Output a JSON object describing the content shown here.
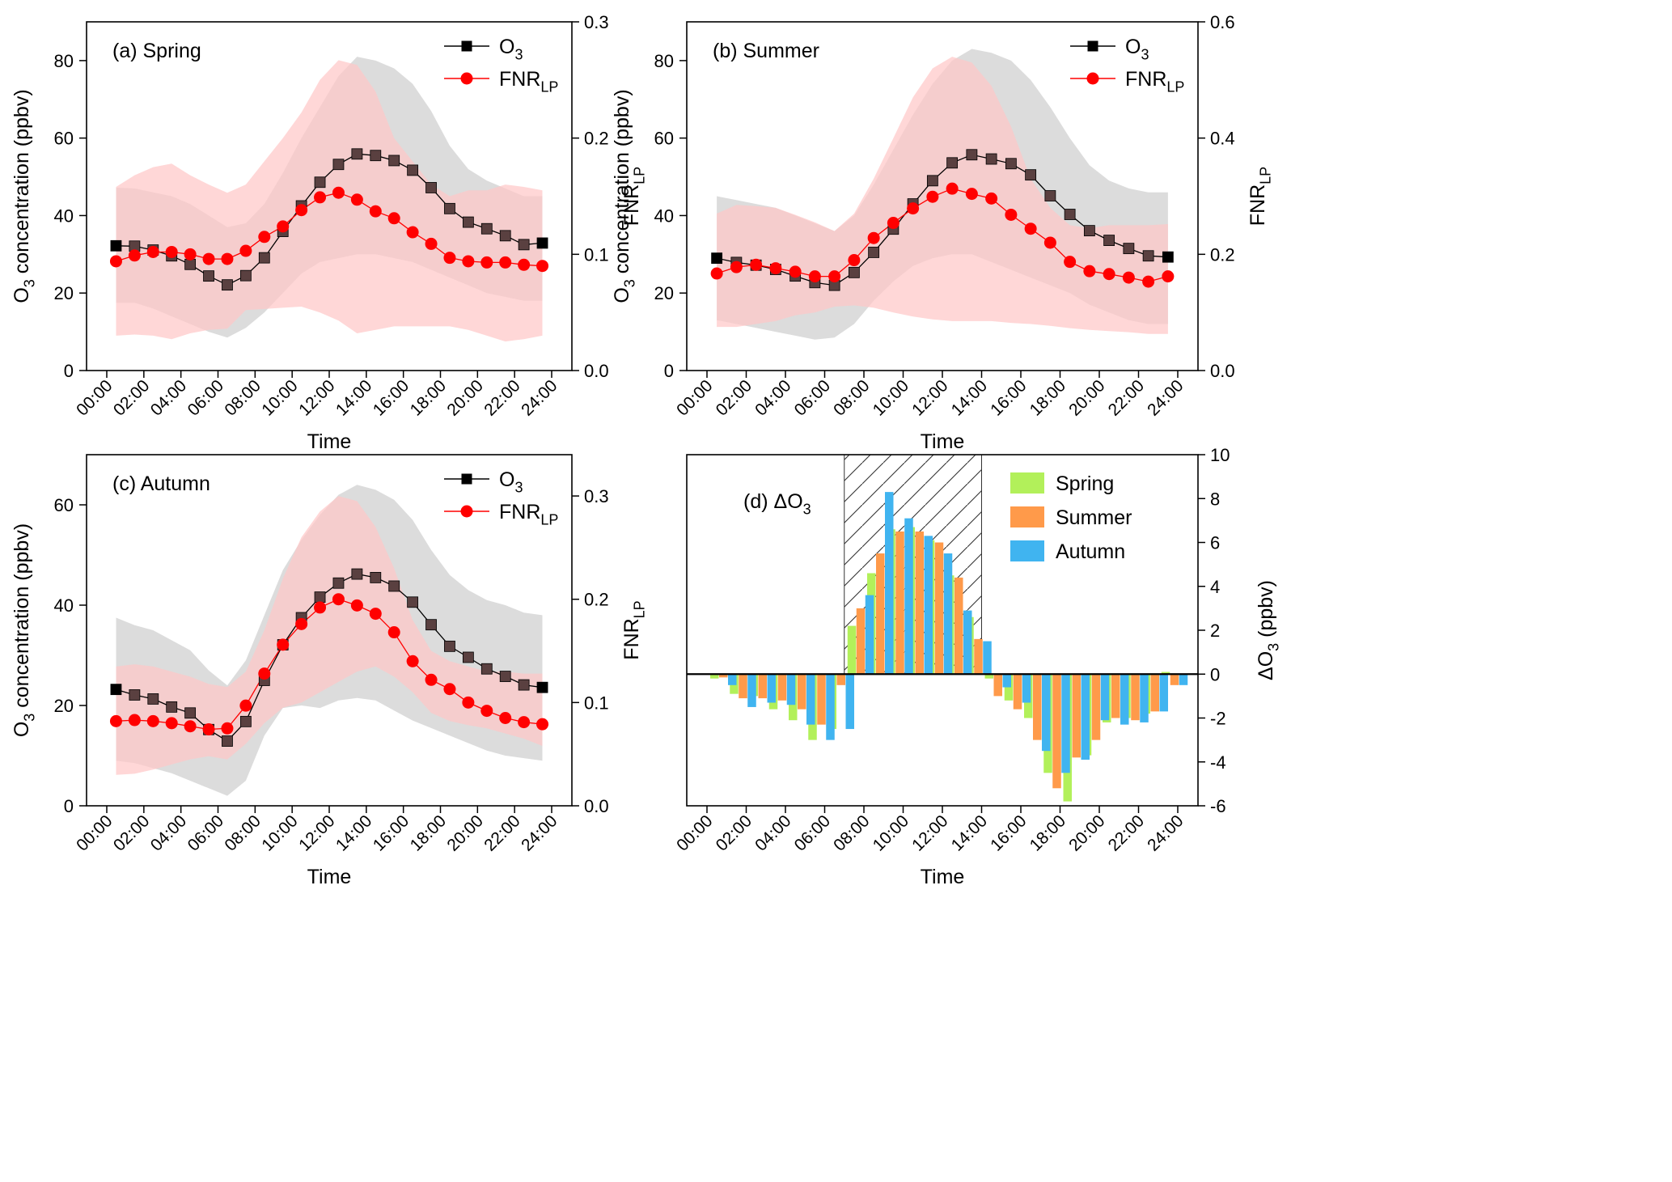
{
  "figure": {
    "colors": {
      "o3_line": "#000000",
      "o3_marker_face": "#5a4040",
      "o3_marker_edge": "#000000",
      "fnr_line": "#ff0000",
      "fnr_marker": "#ff0000",
      "o3_band": "#dcdcdc",
      "fnr_band": "#ffc8c8",
      "overlap_band": "#f0c4c4",
      "spring_bar": "#b2f05a",
      "summer_bar": "#ff9a4a",
      "autumn_bar": "#40b4f0"
    }
  },
  "chart_data": [
    {
      "id": "a",
      "type": "line",
      "panel_label": "(a) Spring",
      "xlabel": "Time",
      "ylabel_main": "O",
      "ylabel_sub": "3",
      "ylabel_rest": " concentration (ppbv)",
      "y2label_main": "FNR",
      "y2label_sub": "LP",
      "x_ticks": [
        "00:00",
        "02:00",
        "04:00",
        "06:00",
        "08:00",
        "10:00",
        "12:00",
        "14:00",
        "16:00",
        "18:00",
        "20:00",
        "22:00",
        "24:00"
      ],
      "x_hours": [
        0.5,
        1.5,
        2.5,
        3.5,
        4.5,
        5.5,
        6.5,
        7.5,
        8.5,
        9.5,
        10.5,
        11.5,
        12.5,
        13.5,
        14.5,
        15.5,
        16.5,
        17.5,
        18.5,
        19.5,
        20.5,
        21.5,
        22.5,
        23.5
      ],
      "ylim": [
        0,
        90
      ],
      "y_ticks": [
        0,
        20,
        40,
        60,
        80
      ],
      "y2lim": [
        0,
        0.3
      ],
      "y2_ticks": [
        "0.0",
        "0.1",
        "0.2",
        "0.3"
      ],
      "legend": [
        {
          "main": "O",
          "sub": "3",
          "marker": "square"
        },
        {
          "main": "FNR",
          "sub": "LP",
          "marker": "circle"
        }
      ],
      "series": [
        {
          "axis": "left",
          "values": [
            32.2,
            32.1,
            31.1,
            29.6,
            27.4,
            24.4,
            22.1,
            24.5,
            29.1,
            35.9,
            42.5,
            48.6,
            53.2,
            55.9,
            55.5,
            54.2,
            51.7,
            47.2,
            41.8,
            38.3,
            36.6,
            34.8,
            32.5,
            32.9
          ],
          "band_upper": [
            47.2,
            47.0,
            46.0,
            45.0,
            43.0,
            40.0,
            37.0,
            38.0,
            43.0,
            51.0,
            60.0,
            68.0,
            76.0,
            81.0,
            80.0,
            78.0,
            74.0,
            67.0,
            58.0,
            52.0,
            49.0,
            47.0,
            45.0,
            45.0
          ],
          "band_lower": [
            17.5,
            17.5,
            16.0,
            14.0,
            12.0,
            10.0,
            8.5,
            11.0,
            15.0,
            20.0,
            25.0,
            28.0,
            29.0,
            30.0,
            30.0,
            29.0,
            28.0,
            26.0,
            24.0,
            22.0,
            20.0,
            19.0,
            18.0,
            18.0
          ]
        },
        {
          "axis": "right",
          "values": [
            0.094,
            0.099,
            0.102,
            0.102,
            0.1,
            0.096,
            0.096,
            0.103,
            0.115,
            0.124,
            0.138,
            0.149,
            0.153,
            0.147,
            0.137,
            0.131,
            0.119,
            0.109,
            0.097,
            0.094,
            0.093,
            0.093,
            0.091,
            0.09
          ],
          "band_upper": [
            0.158,
            0.168,
            0.175,
            0.178,
            0.168,
            0.16,
            0.153,
            0.16,
            0.18,
            0.2,
            0.222,
            0.25,
            0.267,
            0.263,
            0.24,
            0.2,
            0.18,
            0.16,
            0.15,
            0.155,
            0.155,
            0.16,
            0.158,
            0.155
          ],
          "band_lower": [
            0.03,
            0.031,
            0.03,
            0.027,
            0.032,
            0.035,
            0.036,
            0.052,
            0.053,
            0.054,
            0.055,
            0.05,
            0.043,
            0.032,
            0.035,
            0.038,
            0.038,
            0.038,
            0.038,
            0.035,
            0.03,
            0.025,
            0.027,
            0.03
          ]
        }
      ]
    },
    {
      "id": "b",
      "type": "line",
      "panel_label": "(b) Summer",
      "xlabel": "Time",
      "ylabel_main": "O",
      "ylabel_sub": "3",
      "ylabel_rest": " concentration (ppbv)",
      "y2label_main": "FNR",
      "y2label_sub": "LP",
      "x_ticks": [
        "00:00",
        "02:00",
        "04:00",
        "06:00",
        "08:00",
        "10:00",
        "12:00",
        "14:00",
        "16:00",
        "18:00",
        "20:00",
        "22:00",
        "24:00"
      ],
      "x_hours": [
        0.5,
        1.5,
        2.5,
        3.5,
        4.5,
        5.5,
        6.5,
        7.5,
        8.5,
        9.5,
        10.5,
        11.5,
        12.5,
        13.5,
        14.5,
        15.5,
        16.5,
        17.5,
        18.5,
        19.5,
        20.5,
        21.5,
        22.5,
        23.5
      ],
      "ylim": [
        0,
        90
      ],
      "y_ticks": [
        0,
        20,
        40,
        60,
        80
      ],
      "y2lim": [
        0,
        0.6
      ],
      "y2_ticks": [
        "0.0",
        "0.2",
        "0.4",
        "0.6"
      ],
      "legend": [
        {
          "main": "O",
          "sub": "3",
          "marker": "square"
        },
        {
          "main": "FNR",
          "sub": "LP",
          "marker": "circle"
        }
      ],
      "series": [
        {
          "axis": "left",
          "values": [
            29.0,
            27.9,
            27.2,
            26.1,
            24.4,
            22.7,
            22.0,
            25.3,
            30.5,
            36.5,
            43.0,
            49.0,
            53.6,
            55.7,
            54.6,
            53.4,
            50.5,
            45.1,
            40.3,
            36.1,
            33.6,
            31.5,
            29.6,
            29.3
          ],
          "band_upper": [
            45.0,
            44.0,
            43.0,
            42.0,
            40.0,
            38.0,
            36.0,
            40.0,
            48.0,
            57.0,
            66.0,
            74.0,
            80.0,
            83.0,
            82.0,
            80.0,
            75.0,
            68.0,
            60.0,
            53.0,
            49.0,
            47.0,
            46.0,
            46.0
          ],
          "band_lower": [
            13.0,
            12.0,
            11.0,
            10.0,
            9.0,
            8.0,
            8.5,
            12.0,
            18.0,
            23.0,
            27.0,
            29.0,
            30.0,
            30.0,
            28.0,
            26.0,
            24.0,
            22.0,
            20.0,
            17.0,
            15.0,
            13.0,
            12.0,
            12.0
          ]
        },
        {
          "axis": "right",
          "values": [
            0.167,
            0.178,
            0.182,
            0.176,
            0.17,
            0.162,
            0.162,
            0.19,
            0.228,
            0.254,
            0.279,
            0.299,
            0.313,
            0.304,
            0.296,
            0.268,
            0.244,
            0.22,
            0.187,
            0.171,
            0.166,
            0.16,
            0.153,
            0.162
          ],
          "band_upper": [
            0.27,
            0.285,
            0.283,
            0.28,
            0.268,
            0.255,
            0.24,
            0.27,
            0.33,
            0.4,
            0.47,
            0.52,
            0.54,
            0.53,
            0.49,
            0.42,
            0.33,
            0.28,
            0.25,
            0.245,
            0.25,
            0.25,
            0.25,
            0.252
          ],
          "band_lower": [
            0.075,
            0.075,
            0.08,
            0.085,
            0.095,
            0.1,
            0.11,
            0.112,
            0.108,
            0.1,
            0.093,
            0.088,
            0.085,
            0.085,
            0.085,
            0.082,
            0.08,
            0.077,
            0.073,
            0.07,
            0.068,
            0.066,
            0.063,
            0.063
          ]
        }
      ]
    },
    {
      "id": "c",
      "type": "line",
      "panel_label": "(c) Autumn",
      "xlabel": "Time",
      "ylabel_main": "O",
      "ylabel_sub": "3",
      "ylabel_rest": " concentration (ppbv)",
      "y2label_main": "FNR",
      "y2label_sub": "LP",
      "x_ticks": [
        "00:00",
        "02:00",
        "04:00",
        "06:00",
        "08:00",
        "10:00",
        "12:00",
        "14:00",
        "16:00",
        "18:00",
        "20:00",
        "22:00",
        "24:00"
      ],
      "x_hours": [
        0.5,
        1.5,
        2.5,
        3.5,
        4.5,
        5.5,
        6.5,
        7.5,
        8.5,
        9.5,
        10.5,
        11.5,
        12.5,
        13.5,
        14.5,
        15.5,
        16.5,
        17.5,
        18.5,
        19.5,
        20.5,
        21.5,
        22.5,
        23.5
      ],
      "ylim": [
        0,
        70
      ],
      "y_ticks": [
        0,
        20,
        40,
        60
      ],
      "y2lim": [
        0,
        0.34
      ],
      "y2_ticks": [
        "0.0",
        "0.1",
        "0.2",
        "0.3"
      ],
      "legend": [
        {
          "main": "O",
          "sub": "3",
          "marker": "square"
        },
        {
          "main": "FNR",
          "sub": "LP",
          "marker": "circle"
        }
      ],
      "series": [
        {
          "axis": "left",
          "values": [
            23.2,
            22.1,
            21.3,
            19.7,
            18.5,
            15.2,
            12.9,
            16.8,
            25.0,
            32.1,
            37.5,
            41.6,
            44.4,
            46.2,
            45.5,
            43.8,
            40.6,
            36.1,
            31.8,
            29.6,
            27.3,
            25.8,
            24.1,
            23.6
          ],
          "band_upper": [
            37.5,
            36.0,
            35.0,
            33.0,
            31.0,
            27.0,
            24.0,
            29.0,
            38.0,
            47.0,
            53.0,
            58.0,
            62.0,
            64.0,
            63.0,
            61.0,
            57.0,
            51.0,
            46.0,
            43.0,
            41.0,
            40.0,
            38.5,
            38.0
          ],
          "band_lower": [
            9.0,
            8.5,
            7.5,
            6.5,
            5.0,
            3.5,
            2.0,
            5.0,
            14.0,
            19.5,
            20.0,
            19.5,
            21.0,
            21.5,
            21.0,
            19.0,
            17.0,
            15.5,
            14.0,
            12.5,
            11.0,
            10.0,
            9.5,
            9.0
          ]
        },
        {
          "axis": "right",
          "values": [
            0.082,
            0.083,
            0.082,
            0.08,
            0.077,
            0.074,
            0.075,
            0.097,
            0.128,
            0.156,
            0.176,
            0.192,
            0.2,
            0.194,
            0.186,
            0.168,
            0.14,
            0.122,
            0.113,
            0.1,
            0.092,
            0.085,
            0.081,
            0.079
          ],
          "band_upper": [
            0.135,
            0.137,
            0.135,
            0.13,
            0.125,
            0.118,
            0.115,
            0.13,
            0.17,
            0.22,
            0.26,
            0.285,
            0.3,
            0.295,
            0.27,
            0.23,
            0.18,
            0.15,
            0.14,
            0.135,
            0.13,
            0.13,
            0.128,
            0.128
          ],
          "band_lower": [
            0.03,
            0.031,
            0.035,
            0.04,
            0.045,
            0.048,
            0.045,
            0.06,
            0.08,
            0.095,
            0.1,
            0.11,
            0.12,
            0.13,
            0.135,
            0.125,
            0.11,
            0.09,
            0.082,
            0.078,
            0.075,
            0.07,
            0.065,
            0.058
          ]
        }
      ]
    },
    {
      "id": "d",
      "type": "bar",
      "panel_label_main": "(d) ΔO",
      "panel_label_sub": "3",
      "xlabel": "Time",
      "y2label_main": "ΔO",
      "y2label_sub": "3",
      "y2label_rest": " (ppbv)",
      "x_ticks": [
        "00:00",
        "02:00",
        "04:00",
        "06:00",
        "08:00",
        "10:00",
        "12:00",
        "14:00",
        "16:00",
        "18:00",
        "20:00",
        "22:00",
        "24:00"
      ],
      "x_hours": [
        0.5,
        1.5,
        2.5,
        3.5,
        4.5,
        5.5,
        6.5,
        7.5,
        8.5,
        9.5,
        10.5,
        11.5,
        12.5,
        13.5,
        14.5,
        15.5,
        16.5,
        17.5,
        18.5,
        19.5,
        20.5,
        21.5,
        22.5,
        23.5
      ],
      "ylim": [
        -6,
        10
      ],
      "y_ticks": [
        -6,
        -4,
        -2,
        0,
        2,
        4,
        6,
        8,
        10
      ],
      "shaded_window_hours": [
        7,
        14
      ],
      "legend": [
        "Spring",
        "Summer",
        "Autumn"
      ],
      "series": [
        {
          "name": "Spring",
          "values": [
            -0.2,
            -0.9,
            -1.0,
            -1.6,
            -2.1,
            -3.0,
            -2.5,
            2.2,
            4.6,
            6.6,
            6.7,
            6.1,
            4.5,
            2.6,
            -0.2,
            -1.2,
            -2.0,
            -4.5,
            -5.8,
            -3.7,
            -2.2,
            -2.0,
            -1.8,
            0.1
          ]
        },
        {
          "name": "Summer",
          "values": [
            -0.15,
            -1.1,
            -1.1,
            -1.2,
            -1.6,
            -2.3,
            -0.5,
            3.0,
            5.5,
            6.5,
            6.5,
            6.0,
            4.4,
            1.6,
            -1.0,
            -1.6,
            -3.0,
            -5.2,
            -3.8,
            -3.0,
            -2.0,
            -2.1,
            -1.7,
            -0.5
          ]
        },
        {
          "name": "Autumn",
          "values": [
            -0.5,
            -1.5,
            -1.3,
            -1.4,
            -2.3,
            -3.0,
            -2.5,
            3.6,
            8.3,
            7.1,
            6.3,
            5.5,
            2.9,
            1.5,
            -0.6,
            -1.3,
            -3.5,
            -4.5,
            -3.9,
            -2.1,
            -2.3,
            -2.2,
            -1.7,
            -0.5
          ]
        }
      ]
    }
  ]
}
